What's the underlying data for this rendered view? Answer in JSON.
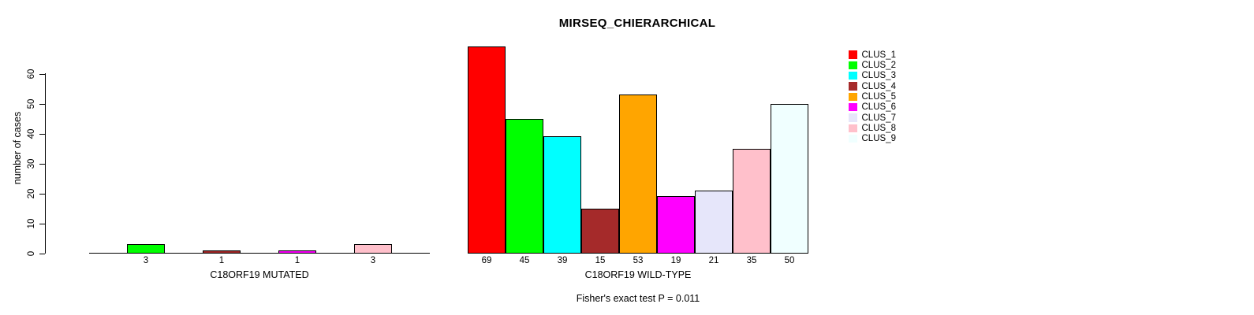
{
  "chart_data": {
    "type": "bar",
    "title": "MIRSEQ_CHIERARCHICAL",
    "ylabel": "number of cases",
    "ylim": [
      0,
      60
    ],
    "yticks": [
      0,
      10,
      20,
      30,
      40,
      50,
      60
    ],
    "grid": false,
    "legend_position": "right",
    "annotation": "Fisher's exact test P = 0.011",
    "panels": [
      {
        "xlabel": "C18ORF19 MUTATED",
        "layout": "gapped",
        "categories": [
          "CLUS_2",
          "CLUS_4",
          "CLUS_6",
          "CLUS_8"
        ],
        "values": [
          3,
          1,
          1,
          3
        ],
        "bar_labels": [
          "3",
          "1",
          "1",
          "3"
        ],
        "bar_colors": [
          "#00FF00",
          "#A52A2A",
          "#FF00FF",
          "#FFC0CB"
        ]
      },
      {
        "xlabel": "C18ORF19 WILD-TYPE",
        "layout": "contiguous",
        "categories": [
          "CLUS_1",
          "CLUS_2",
          "CLUS_3",
          "CLUS_4",
          "CLUS_5",
          "CLUS_6",
          "CLUS_7",
          "CLUS_8",
          "CLUS_9"
        ],
        "values": [
          69,
          45,
          39,
          15,
          53,
          19,
          21,
          35,
          50
        ],
        "bar_labels": [
          "69",
          "45",
          "39",
          "15",
          "53",
          "19",
          "21",
          "35",
          "50"
        ],
        "bar_colors": [
          "#FF0000",
          "#00FF00",
          "#00FFFF",
          "#A52A2A",
          "#FFA500",
          "#FF00FF",
          "#E6E6FA",
          "#FFC0CB",
          "#F0FFFF"
        ]
      }
    ],
    "legend": [
      {
        "label": "CLUS_1",
        "color": "#FF0000"
      },
      {
        "label": "CLUS_2",
        "color": "#00FF00"
      },
      {
        "label": "CLUS_3",
        "color": "#00FFFF"
      },
      {
        "label": "CLUS_4",
        "color": "#A52A2A"
      },
      {
        "label": "CLUS_5",
        "color": "#FFA500"
      },
      {
        "label": "CLUS_6",
        "color": "#FF00FF"
      },
      {
        "label": "CLUS_7",
        "color": "#E6E6FA"
      },
      {
        "label": "CLUS_8",
        "color": "#FFC0CB"
      },
      {
        "label": "CLUS_9",
        "color": "#F0FFFF"
      }
    ],
    "colors": {
      "axis": "#000000",
      "text": "#000000",
      "background": "#FFFFFF"
    }
  }
}
